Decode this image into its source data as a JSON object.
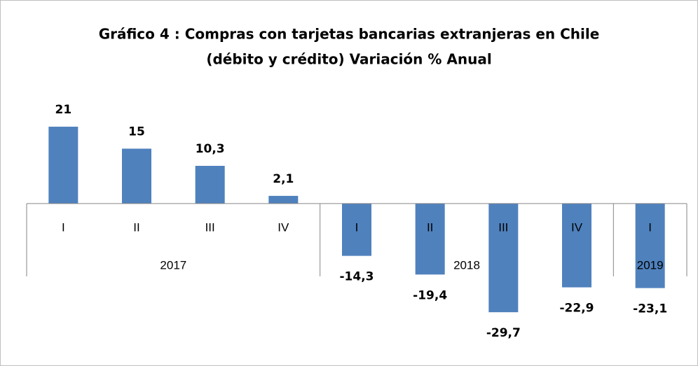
{
  "chart_data": {
    "type": "bar",
    "title": "Gráfico 4 : Compras con tarjetas bancarias extranjeras en Chile",
    "subtitle": "(débito y crédito) Variación % Anual",
    "categories": [
      "I",
      "II",
      "III",
      "IV",
      "I",
      "II",
      "III",
      "IV",
      "I"
    ],
    "x_groups": [
      "2017",
      "2017",
      "2017",
      "2017",
      "2018",
      "2018",
      "2018",
      "2018",
      "2019"
    ],
    "values": [
      21,
      15,
      10.3,
      2.1,
      -14.3,
      -19.4,
      -29.7,
      -22.9,
      -23.1
    ],
    "value_labels": [
      "21",
      "15",
      "10,3",
      "2,1",
      "-14,3",
      "-19,4",
      "-29,7",
      "-22,9",
      "-23,1"
    ],
    "color": "#4f81bd",
    "ylim": [
      -40,
      30
    ]
  }
}
